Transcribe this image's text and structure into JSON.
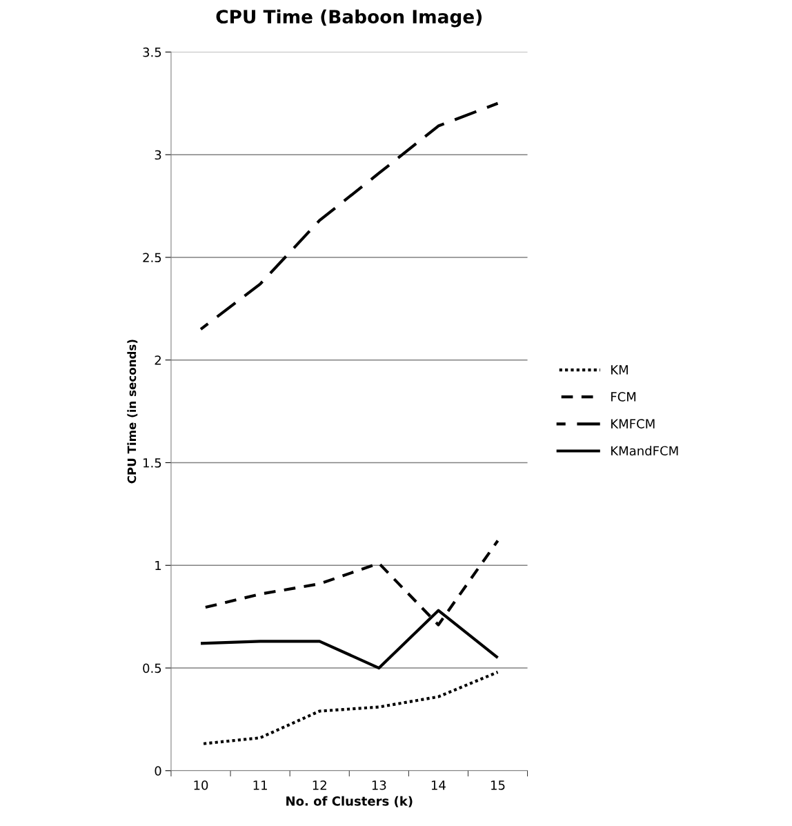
{
  "chart_data": {
    "type": "line",
    "title": "CPU Time (Baboon Image)",
    "xlabel": "No. of Clusters (k)",
    "ylabel": "CPU Time (in seconds)",
    "categories": [
      "10",
      "11",
      "12",
      "13",
      "14",
      "15"
    ],
    "series": [
      {
        "name": "KM",
        "color": "#000000",
        "line_style": "dotted",
        "values": [
          0.13,
          0.16,
          0.29,
          0.31,
          0.36,
          0.48
        ]
      },
      {
        "name": "FCM",
        "color": "#000000",
        "line_style": "dashed",
        "values": [
          0.79,
          0.86,
          0.91,
          1.01,
          0.71,
          1.12
        ]
      },
      {
        "name": "KMFCM",
        "color": "#000000",
        "line_style": "long dashed",
        "values": [
          2.15,
          2.37,
          2.68,
          2.91,
          3.14,
          3.25
        ]
      },
      {
        "name": "KMandFCM",
        "color": "#000000",
        "line_style": "solid",
        "values": [
          0.62,
          0.63,
          0.63,
          0.5,
          0.78,
          0.55
        ]
      }
    ],
    "ylim": [
      0,
      3.5
    ],
    "yticks": [
      0,
      0.5,
      1,
      1.5,
      2,
      2.5,
      3,
      3.5
    ],
    "grid": "y",
    "legend": "right",
    "marker": "none"
  }
}
